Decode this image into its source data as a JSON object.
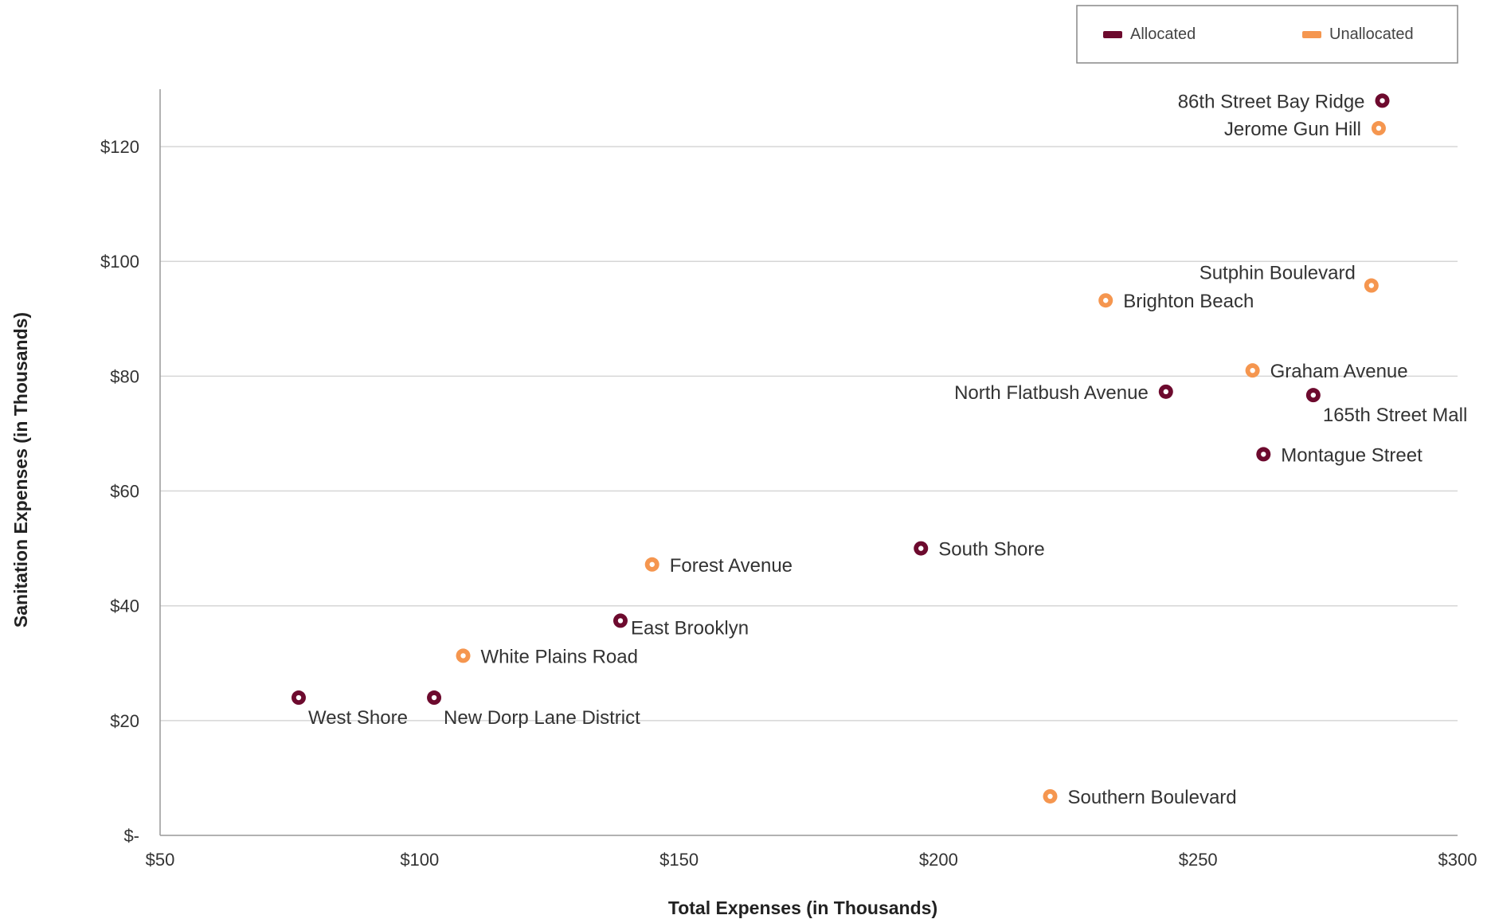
{
  "chart_data": {
    "type": "scatter",
    "xlabel": "Total Expenses (in Thousands)",
    "ylabel": "Sanitation Expenses (in Thousands)",
    "xlim": [
      50,
      300
    ],
    "ylim": [
      0,
      130
    ],
    "x_ticks": [
      50,
      100,
      150,
      200,
      250,
      300
    ],
    "x_tick_labels": [
      "$50",
      "$100",
      "$150",
      "$200",
      "$250",
      "$300"
    ],
    "y_ticks": [
      0,
      20,
      40,
      60,
      80,
      100,
      120
    ],
    "y_tick_labels": [
      "$-",
      "$20",
      "$40",
      "$60",
      "$80",
      "$100",
      "$120"
    ],
    "grid": "horizontal",
    "legend": {
      "placement": "top-right"
    },
    "series": [
      {
        "name": "Allocated",
        "color": "#6d0a2e",
        "points": [
          {
            "label": "86th Street Bay Ridge",
            "x": 285.5,
            "y": 128,
            "label_pos": "left"
          },
          {
            "label": "North Flatbush Avenue",
            "x": 243.8,
            "y": 77.3,
            "label_pos": "left"
          },
          {
            "label": "165th Street Mall",
            "x": 272.2,
            "y": 76.7,
            "label_pos": "below"
          },
          {
            "label": "Montague Street",
            "x": 262.6,
            "y": 66.4,
            "label_pos": "right"
          },
          {
            "label": "South Shore",
            "x": 196.6,
            "y": 50,
            "label_pos": "right"
          },
          {
            "label": "East Brooklyn",
            "x": 138.7,
            "y": 37.4,
            "label_pos": "right-below"
          },
          {
            "label": "West Shore",
            "x": 76.7,
            "y": 24,
            "label_pos": "below"
          },
          {
            "label": "New Dorp Lane District",
            "x": 102.8,
            "y": 24,
            "label_pos": "below"
          }
        ]
      },
      {
        "name": "Unallocated",
        "color": "#f5964f",
        "points": [
          {
            "label": "Jerome Gun Hill",
            "x": 284.8,
            "y": 123.2,
            "label_pos": "left"
          },
          {
            "label": "Sutphin Boulevard",
            "x": 283.4,
            "y": 95.8,
            "label_pos": "above-left"
          },
          {
            "label": "Brighton Beach",
            "x": 232.2,
            "y": 93.2,
            "label_pos": "right"
          },
          {
            "label": "Graham Avenue",
            "x": 260.5,
            "y": 81,
            "label_pos": "right"
          },
          {
            "label": "Forest Avenue",
            "x": 144.8,
            "y": 47.2,
            "label_pos": "right"
          },
          {
            "label": "White Plains Road",
            "x": 108.4,
            "y": 31.3,
            "label_pos": "right"
          },
          {
            "label": "Southern Boulevard",
            "x": 221.5,
            "y": 6.8,
            "label_pos": "right"
          }
        ]
      }
    ]
  }
}
